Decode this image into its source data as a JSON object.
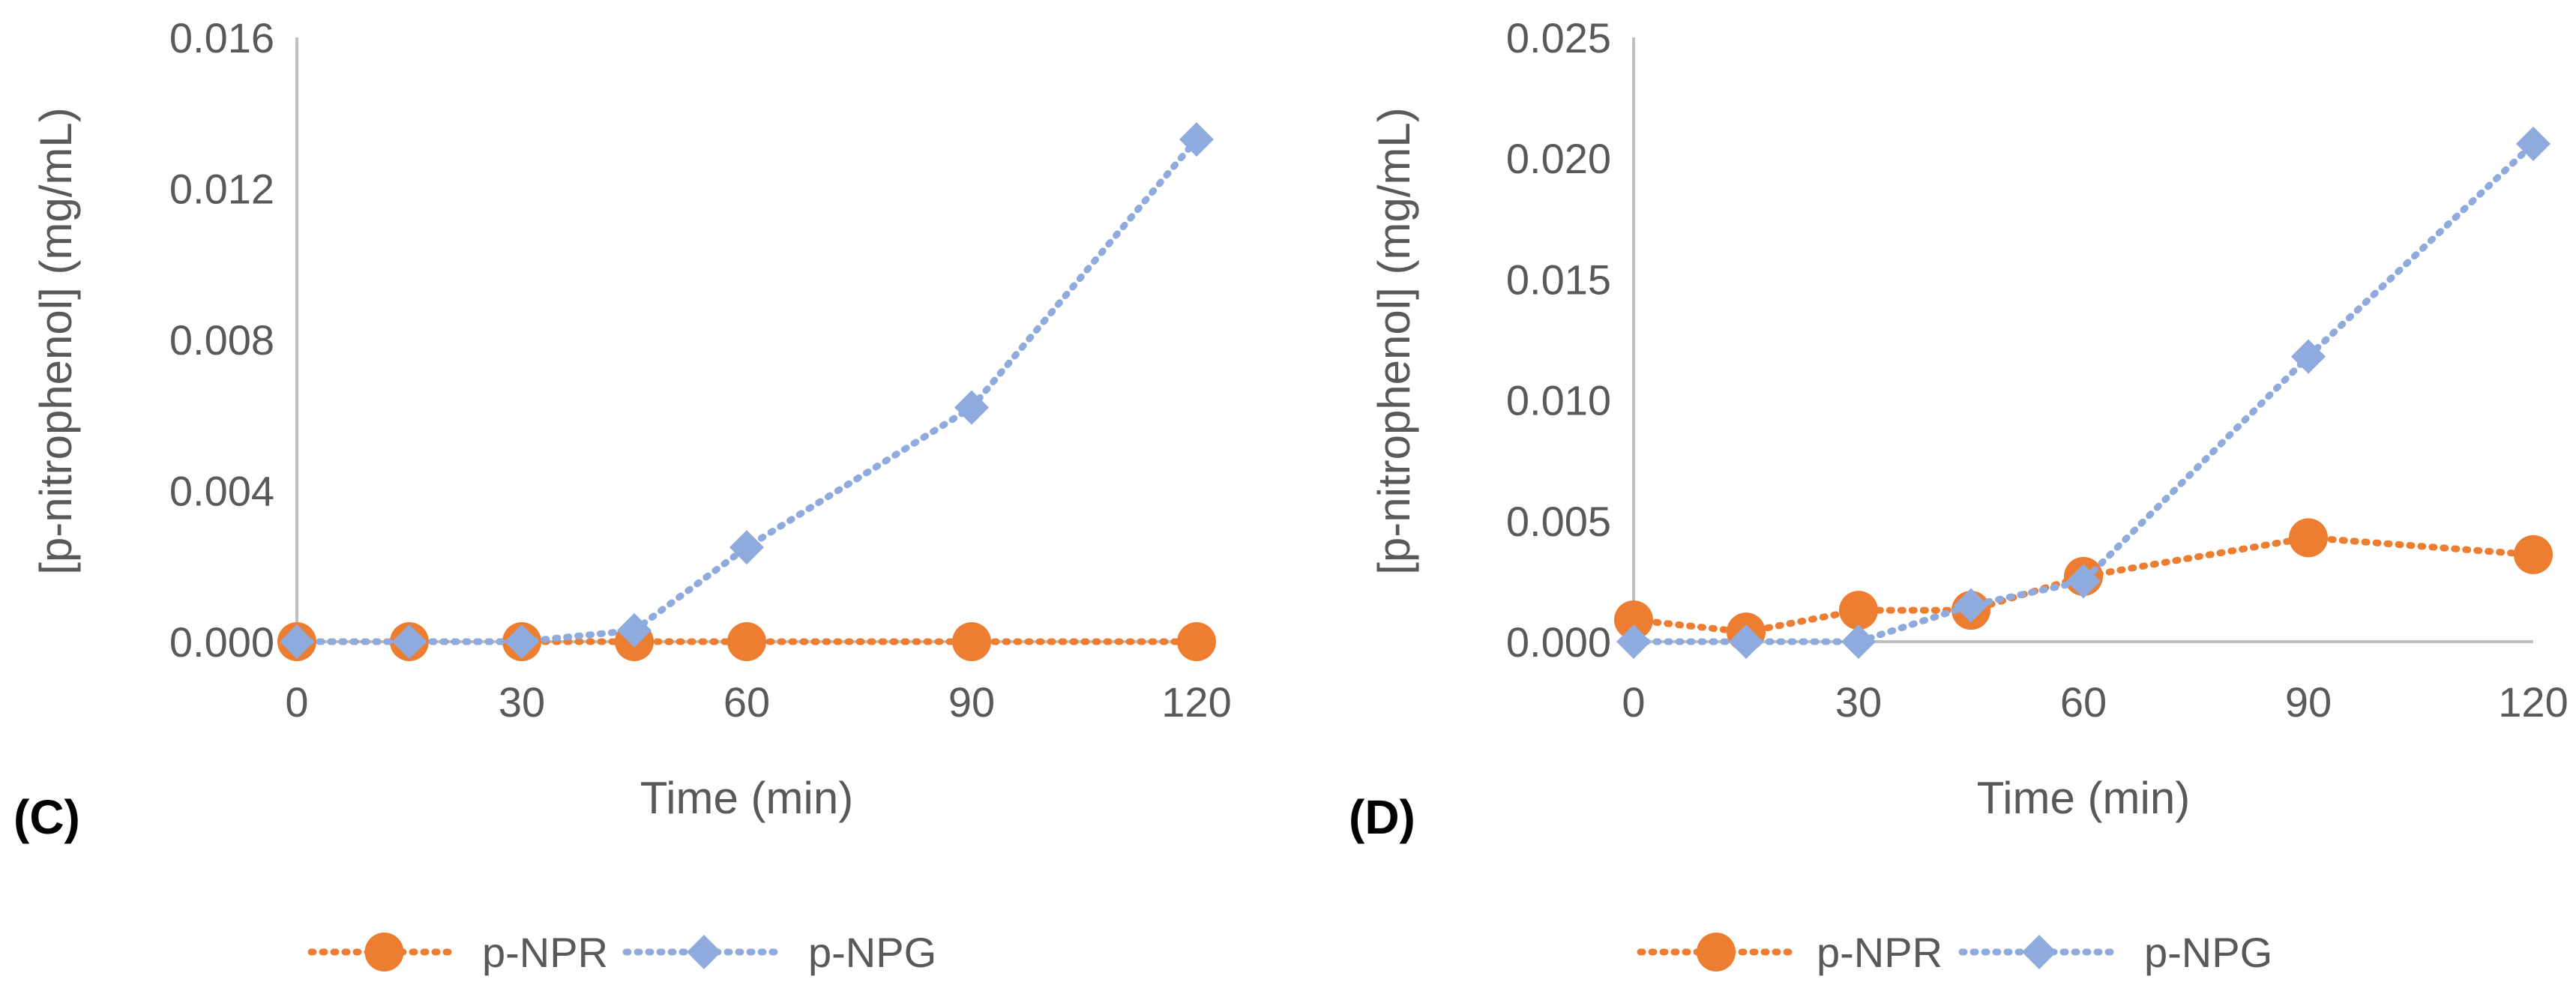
{
  "colors": {
    "p_NPR": "#ED7D31",
    "p_NPG": "#8FAADC",
    "axis": "#BFBFBF",
    "text": "#595959"
  },
  "chart_data": [
    {
      "type": "line",
      "panel_label": "(C)",
      "xlabel": "Time (min)",
      "ylabel": "[p-nitrophenol] (mg/mL)",
      "xlim": [
        0,
        120
      ],
      "ylim": [
        0,
        0.016
      ],
      "x_ticks": [
        0,
        30,
        60,
        90,
        120
      ],
      "x_tick_labels": [
        "0",
        "30",
        "60",
        "90",
        "120"
      ],
      "y_ticks": [
        0,
        0.004,
        0.008,
        0.012,
        0.016
      ],
      "y_tick_labels": [
        "0.000",
        "0.004",
        "0.008",
        "0.012",
        "0.016"
      ],
      "legend_position": "bottom",
      "series": [
        {
          "name": "p-NPR",
          "marker": "circle",
          "x": [
            0,
            15,
            30,
            45,
            60,
            90,
            120
          ],
          "values": [
            0,
            0,
            0,
            0,
            0,
            0,
            0
          ]
        },
        {
          "name": "p-NPG",
          "marker": "diamond",
          "x": [
            0,
            15,
            30,
            45,
            60,
            90,
            120
          ],
          "values": [
            0,
            0,
            0,
            0.0003,
            0.0025,
            0.0062,
            0.0133
          ]
        }
      ]
    },
    {
      "type": "line",
      "panel_label": "(D)",
      "xlabel": "Time (min)",
      "ylabel": "[p-nitrophenol] (mg/mL)",
      "xlim": [
        0,
        120
      ],
      "ylim": [
        0,
        0.025
      ],
      "x_ticks": [
        0,
        30,
        60,
        90,
        120
      ],
      "x_tick_labels": [
        "0",
        "30",
        "60",
        "90",
        "120"
      ],
      "y_ticks": [
        0,
        0.005,
        0.01,
        0.015,
        0.02,
        0.025
      ],
      "y_tick_labels": [
        "0.000",
        "0.005",
        "0.010",
        "0.015",
        "0.020",
        "0.025"
      ],
      "legend_position": "bottom",
      "series": [
        {
          "name": "p-NPR",
          "marker": "circle",
          "x": [
            0,
            15,
            30,
            45,
            60,
            90,
            120
          ],
          "values": [
            0.0009,
            0.0004,
            0.0013,
            0.0013,
            0.0027,
            0.0043,
            0.0036
          ]
        },
        {
          "name": "p-NPG",
          "marker": "diamond",
          "x": [
            0,
            15,
            30,
            45,
            60,
            90,
            120
          ],
          "values": [
            0,
            0,
            0,
            0.0015,
            0.0025,
            0.0118,
            0.0206
          ]
        }
      ]
    }
  ]
}
